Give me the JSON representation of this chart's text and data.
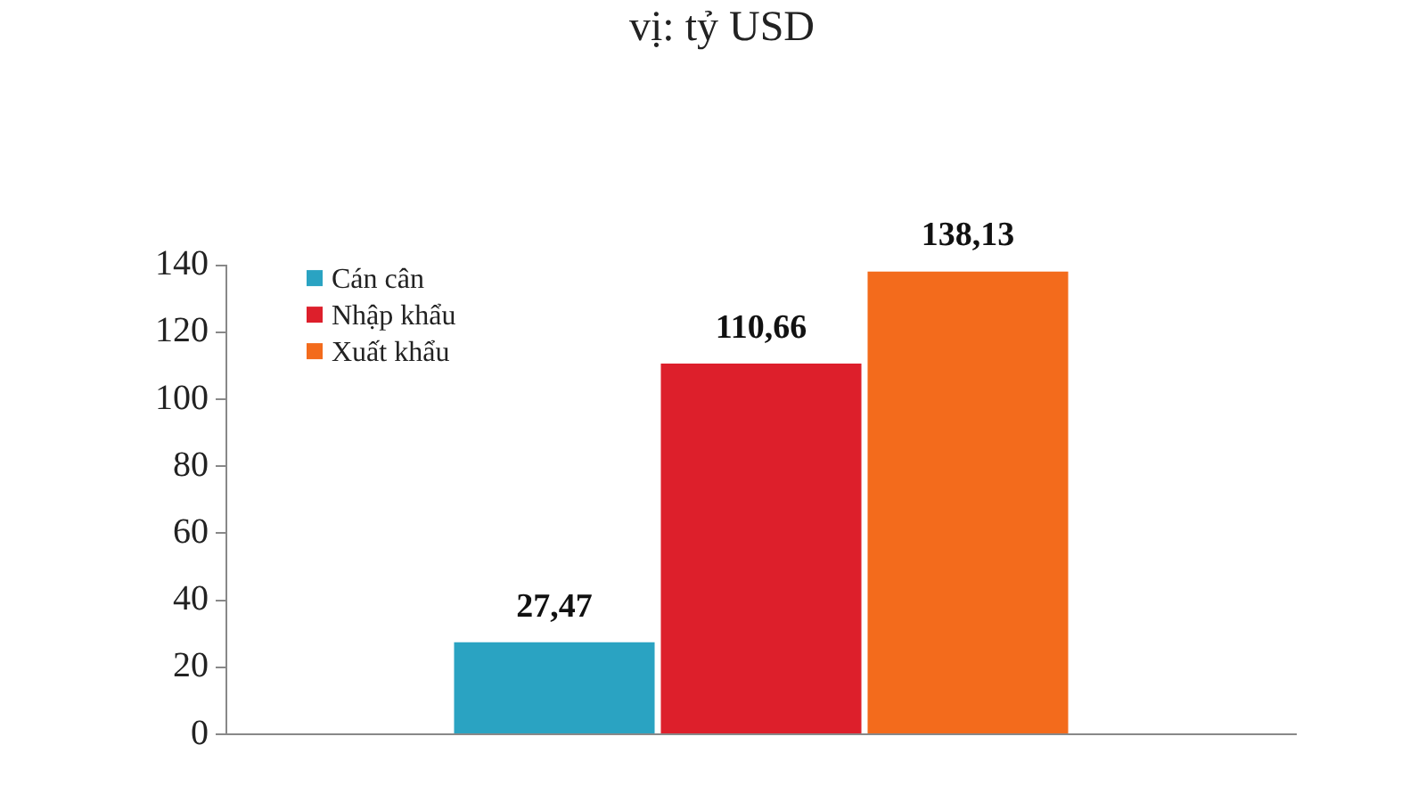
{
  "chart_data": {
    "type": "bar",
    "title": "vị: tỷ USD",
    "categories": [
      null
    ],
    "series": [
      {
        "name": "Cán cân",
        "color": "#2aa3c2",
        "values": [
          27.47
        ],
        "value_labels": [
          "27,47"
        ]
      },
      {
        "name": "Nhập khẩu",
        "color": "#dd1f2b",
        "values": [
          110.66
        ],
        "value_labels": [
          "110,66"
        ]
      },
      {
        "name": "Xuất khẩu",
        "color": "#f36b1c",
        "values": [
          138.13
        ],
        "value_labels": [
          "138,13"
        ]
      }
    ],
    "ylim": [
      0,
      140
    ],
    "yticks": [
      0,
      20,
      40,
      60,
      80,
      100,
      120,
      140
    ],
    "legend": "top left"
  }
}
